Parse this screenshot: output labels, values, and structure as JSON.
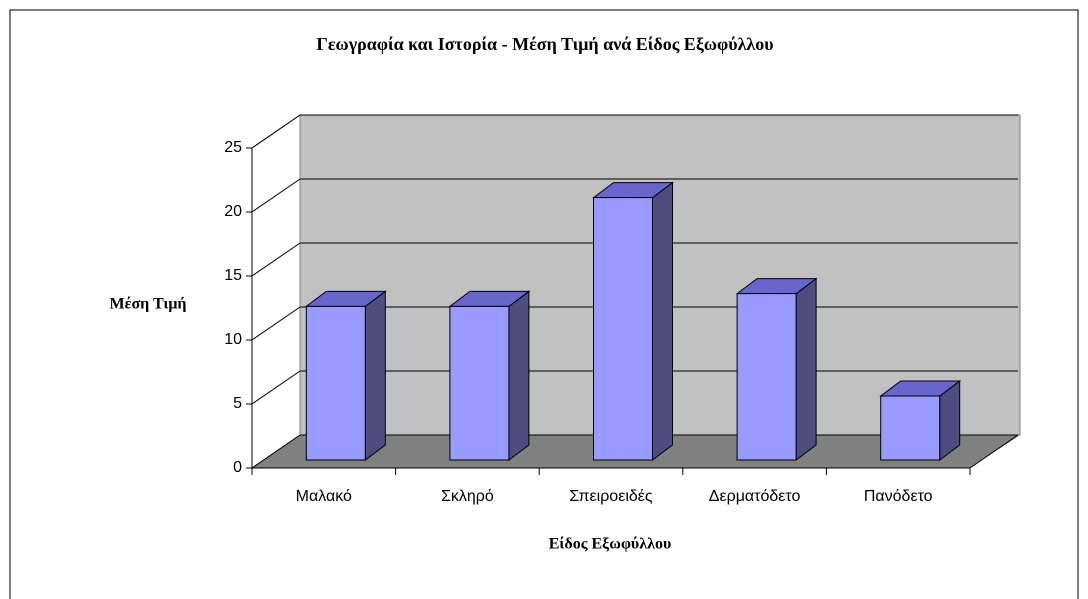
{
  "chart_data": {
    "type": "bar3d",
    "title": "Γεωγραφία και Ιστορία - Μέση Τιμή ανά Είδος Εξωφύλλου",
    "x_label": "Είδος Εξωφύλλου",
    "y_label": "Μέση Τιμή",
    "categories": [
      "Μαλακό",
      "Σκληρό",
      "Σπειροειδές",
      "Δερματόδετο",
      "Πανόδετο"
    ],
    "values": [
      12,
      12,
      20.5,
      13,
      5
    ],
    "color": "#9999ff",
    "ylim": [
      0,
      25
    ],
    "yticks": [
      0,
      5,
      10,
      15,
      20,
      25
    ],
    "grid": true
  }
}
